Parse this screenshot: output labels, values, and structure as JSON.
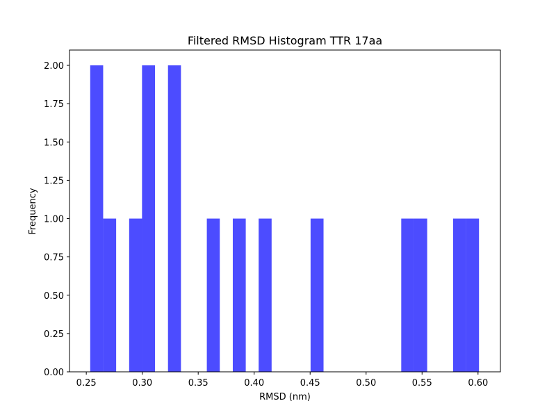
{
  "chart_data": {
    "type": "bar",
    "title": "Filtered RMSD Histogram TTR 17aa",
    "xlabel": "RMSD (nm)",
    "ylabel": "Frequency",
    "xlim": [
      0.235,
      0.62
    ],
    "ylim": [
      0,
      2.1
    ],
    "xticks": [
      0.25,
      0.3,
      0.35,
      0.4,
      0.45,
      0.5,
      0.55,
      0.6
    ],
    "xtick_labels": [
      "0.25",
      "0.30",
      "0.35",
      "0.40",
      "0.45",
      "0.50",
      "0.55",
      "0.60"
    ],
    "yticks": [
      0,
      0.25,
      0.5,
      0.75,
      1.0,
      1.25,
      1.5,
      1.75,
      2.0
    ],
    "ytick_labels": [
      "0.00",
      "0.25",
      "0.50",
      "0.75",
      "1.00",
      "1.25",
      "1.50",
      "1.75",
      "2.00"
    ],
    "bar_color": "#4c4cff",
    "bin_width": 0.01158,
    "bins": [
      {
        "x0": 0.2535,
        "value": 2
      },
      {
        "x0": 0.2651,
        "value": 1
      },
      {
        "x0": 0.2883,
        "value": 1
      },
      {
        "x0": 0.2998,
        "value": 2
      },
      {
        "x0": 0.323,
        "value": 2
      },
      {
        "x0": 0.3577,
        "value": 1
      },
      {
        "x0": 0.3809,
        "value": 1
      },
      {
        "x0": 0.404,
        "value": 1
      },
      {
        "x0": 0.4504,
        "value": 1
      },
      {
        "x0": 0.5314,
        "value": 1
      },
      {
        "x0": 0.543,
        "value": 1
      },
      {
        "x0": 0.5777,
        "value": 1
      },
      {
        "x0": 0.5893,
        "value": 1
      }
    ],
    "grid": false,
    "legend": "none"
  }
}
